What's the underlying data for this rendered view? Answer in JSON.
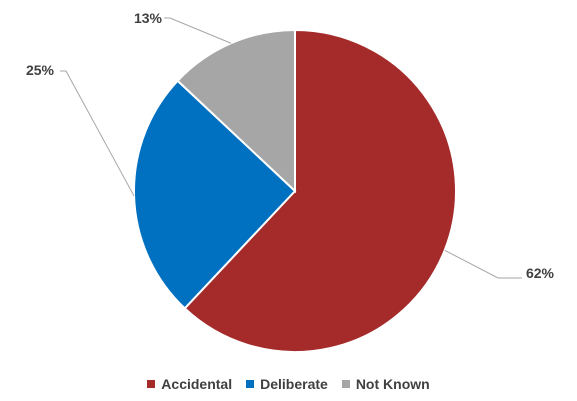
{
  "chart_data": {
    "type": "pie",
    "categories": [
      "Accidental",
      "Deliberate",
      "Not Known"
    ],
    "values": [
      62,
      25,
      13
    ],
    "labels": [
      "62%",
      "25%",
      "13%"
    ],
    "colors": [
      "#a52a2a",
      "#0070c0",
      "#a6a6a6"
    ],
    "start_angle_deg": 0,
    "direction": "clockwise",
    "legend": "bottom",
    "title": ""
  },
  "legend": {
    "items": [
      {
        "label": "Accidental",
        "color": "#a52a2a"
      },
      {
        "label": "Deliberate",
        "color": "#0070c0"
      },
      {
        "label": "Not Known",
        "color": "#a6a6a6"
      }
    ]
  }
}
